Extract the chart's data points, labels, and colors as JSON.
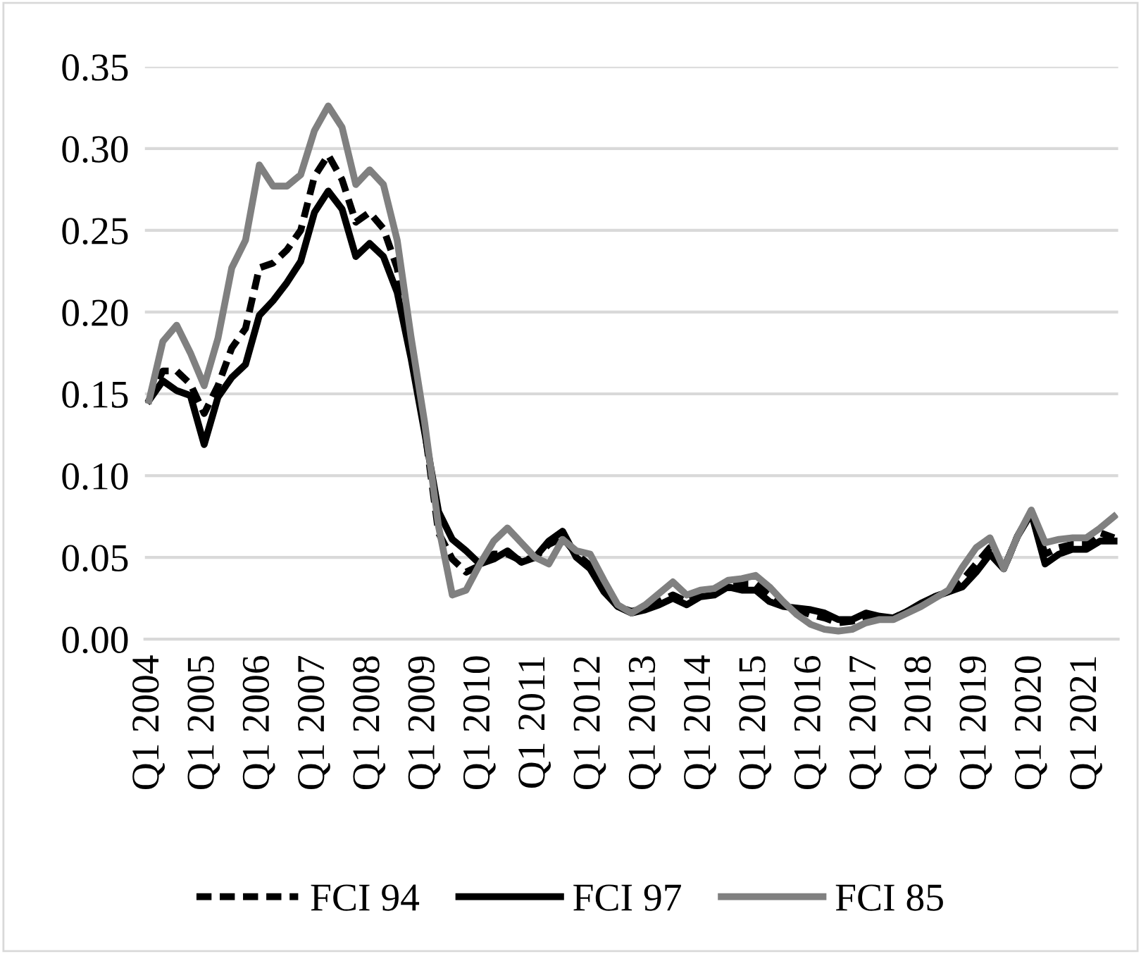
{
  "chart_data": {
    "type": "line",
    "categories": [
      "Q1 2004",
      null,
      null,
      null,
      "Q1 2005",
      null,
      null,
      null,
      "Q1 2006",
      null,
      null,
      null,
      "Q1 2007",
      null,
      null,
      null,
      "Q1 2008",
      null,
      null,
      null,
      "Q1 2009",
      null,
      null,
      null,
      "Q1 2010",
      null,
      null,
      null,
      "Q1 2011",
      null,
      null,
      null,
      "Q1 2012",
      null,
      null,
      null,
      "Q1 2013",
      null,
      null,
      null,
      "Q1 2014",
      null,
      null,
      null,
      "Q1 2015",
      null,
      null,
      null,
      "Q1 2016",
      null,
      null,
      null,
      "Q1 2017",
      null,
      null,
      null,
      "Q1 2018",
      null,
      null,
      null,
      "Q1 2019",
      null,
      null,
      null,
      "Q1 2020",
      null,
      null,
      null,
      "Q1 2021",
      null,
      null
    ],
    "series": [
      {
        "name": "FCI 94",
        "color": "#000000",
        "line_style": "dashed",
        "values": [
          0.146,
          0.164,
          0.164,
          0.156,
          0.138,
          0.155,
          0.178,
          0.19,
          0.227,
          0.23,
          0.238,
          0.25,
          0.283,
          0.296,
          0.281,
          0.255,
          0.261,
          0.251,
          0.227,
          0.175,
          0.128,
          0.065,
          0.049,
          0.041,
          0.045,
          0.052,
          0.052,
          0.048,
          0.05,
          0.058,
          0.062,
          0.052,
          0.045,
          0.03,
          0.02,
          0.017,
          0.019,
          0.023,
          0.027,
          0.023,
          0.028,
          0.029,
          0.033,
          0.034,
          0.034,
          0.027,
          0.021,
          0.018,
          0.015,
          0.013,
          0.01,
          0.011,
          0.014,
          0.013,
          0.013,
          0.017,
          0.021,
          0.026,
          0.029,
          0.036,
          0.046,
          0.056,
          0.043,
          0.063,
          0.078,
          0.052,
          0.056,
          0.058,
          0.058,
          0.065,
          0.062
        ]
      },
      {
        "name": "FCI 97",
        "color": "#000000",
        "line_style": "solid",
        "values": [
          0.146,
          0.158,
          0.152,
          0.149,
          0.119,
          0.148,
          0.16,
          0.168,
          0.198,
          0.207,
          0.218,
          0.231,
          0.261,
          0.274,
          0.263,
          0.234,
          0.242,
          0.234,
          0.212,
          0.172,
          0.126,
          0.078,
          0.061,
          0.054,
          0.046,
          0.049,
          0.054,
          0.047,
          0.05,
          0.06,
          0.066,
          0.05,
          0.043,
          0.029,
          0.02,
          0.016,
          0.018,
          0.021,
          0.025,
          0.021,
          0.026,
          0.027,
          0.032,
          0.03,
          0.03,
          0.023,
          0.02,
          0.019,
          0.018,
          0.016,
          0.012,
          0.012,
          0.016,
          0.014,
          0.013,
          0.017,
          0.022,
          0.026,
          0.029,
          0.032,
          0.041,
          0.052,
          0.043,
          0.063,
          0.077,
          0.046,
          0.052,
          0.055,
          0.055,
          0.06,
          0.06
        ]
      },
      {
        "name": "FCI 85",
        "color": "#808080",
        "line_style": "solid",
        "values": [
          0.146,
          0.182,
          0.192,
          0.175,
          0.155,
          0.184,
          0.227,
          0.244,
          0.29,
          0.277,
          0.277,
          0.284,
          0.311,
          0.326,
          0.313,
          0.278,
          0.287,
          0.278,
          0.244,
          0.185,
          0.132,
          0.069,
          0.027,
          0.03,
          0.046,
          0.06,
          0.068,
          0.059,
          0.05,
          0.046,
          0.061,
          0.054,
          0.052,
          0.036,
          0.021,
          0.016,
          0.021,
          0.028,
          0.035,
          0.027,
          0.03,
          0.031,
          0.036,
          0.037,
          0.039,
          0.032,
          0.023,
          0.015,
          0.009,
          0.006,
          0.005,
          0.006,
          0.01,
          0.012,
          0.012,
          0.016,
          0.02,
          0.025,
          0.03,
          0.044,
          0.056,
          0.062,
          0.043,
          0.063,
          0.079,
          0.059,
          0.061,
          0.062,
          0.062,
          0.068,
          0.075
        ]
      }
    ],
    "ylim": [
      0,
      0.35
    ],
    "yticks": [
      {
        "value": 0,
        "label": "0.00"
      },
      {
        "value": 0.05,
        "label": "0.05"
      },
      {
        "value": 0.1,
        "label": "0.10"
      },
      {
        "value": 0.15,
        "label": "0.15"
      },
      {
        "value": 0.2,
        "label": "0.20"
      },
      {
        "value": 0.25,
        "label": "0.25"
      },
      {
        "value": 0.3,
        "label": "0.30"
      },
      {
        "value": 0.35,
        "label": "0.35"
      }
    ],
    "grid": "y",
    "legend": "bottom",
    "marker": "none"
  }
}
